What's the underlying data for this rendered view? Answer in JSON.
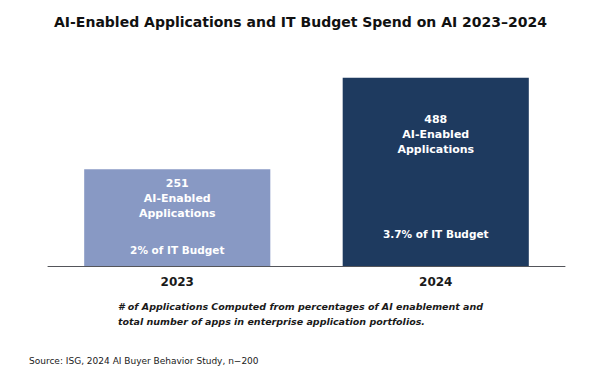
{
  "chart_data": {
    "type": "bar",
    "title": "AI-Enabled Applications and IT Budget Spend on AI 2023–2024",
    "categories": [
      "2023",
      "2024"
    ],
    "values": [
      251,
      488
    ],
    "colors": [
      "#8899c4",
      "#1e3a5f"
    ],
    "data_labels": true,
    "value_labels": [
      "251\nAI-Enabled\nApplications",
      "488\nAI-Enabled\nApplications"
    ],
    "annotations": [
      "2% of IT Budget",
      "3.7% of IT Budget"
    ],
    "footnote": "# of Applications Computed from percentages of AI enablement and\ntotal number of apps in enterprise application portfolios.",
    "source": "Source: ISG, 2024 AI Buyer Behavior Study, n−200",
    "ylim": [
      0,
      560
    ],
    "grid": false,
    "tick_labels": "x"
  }
}
